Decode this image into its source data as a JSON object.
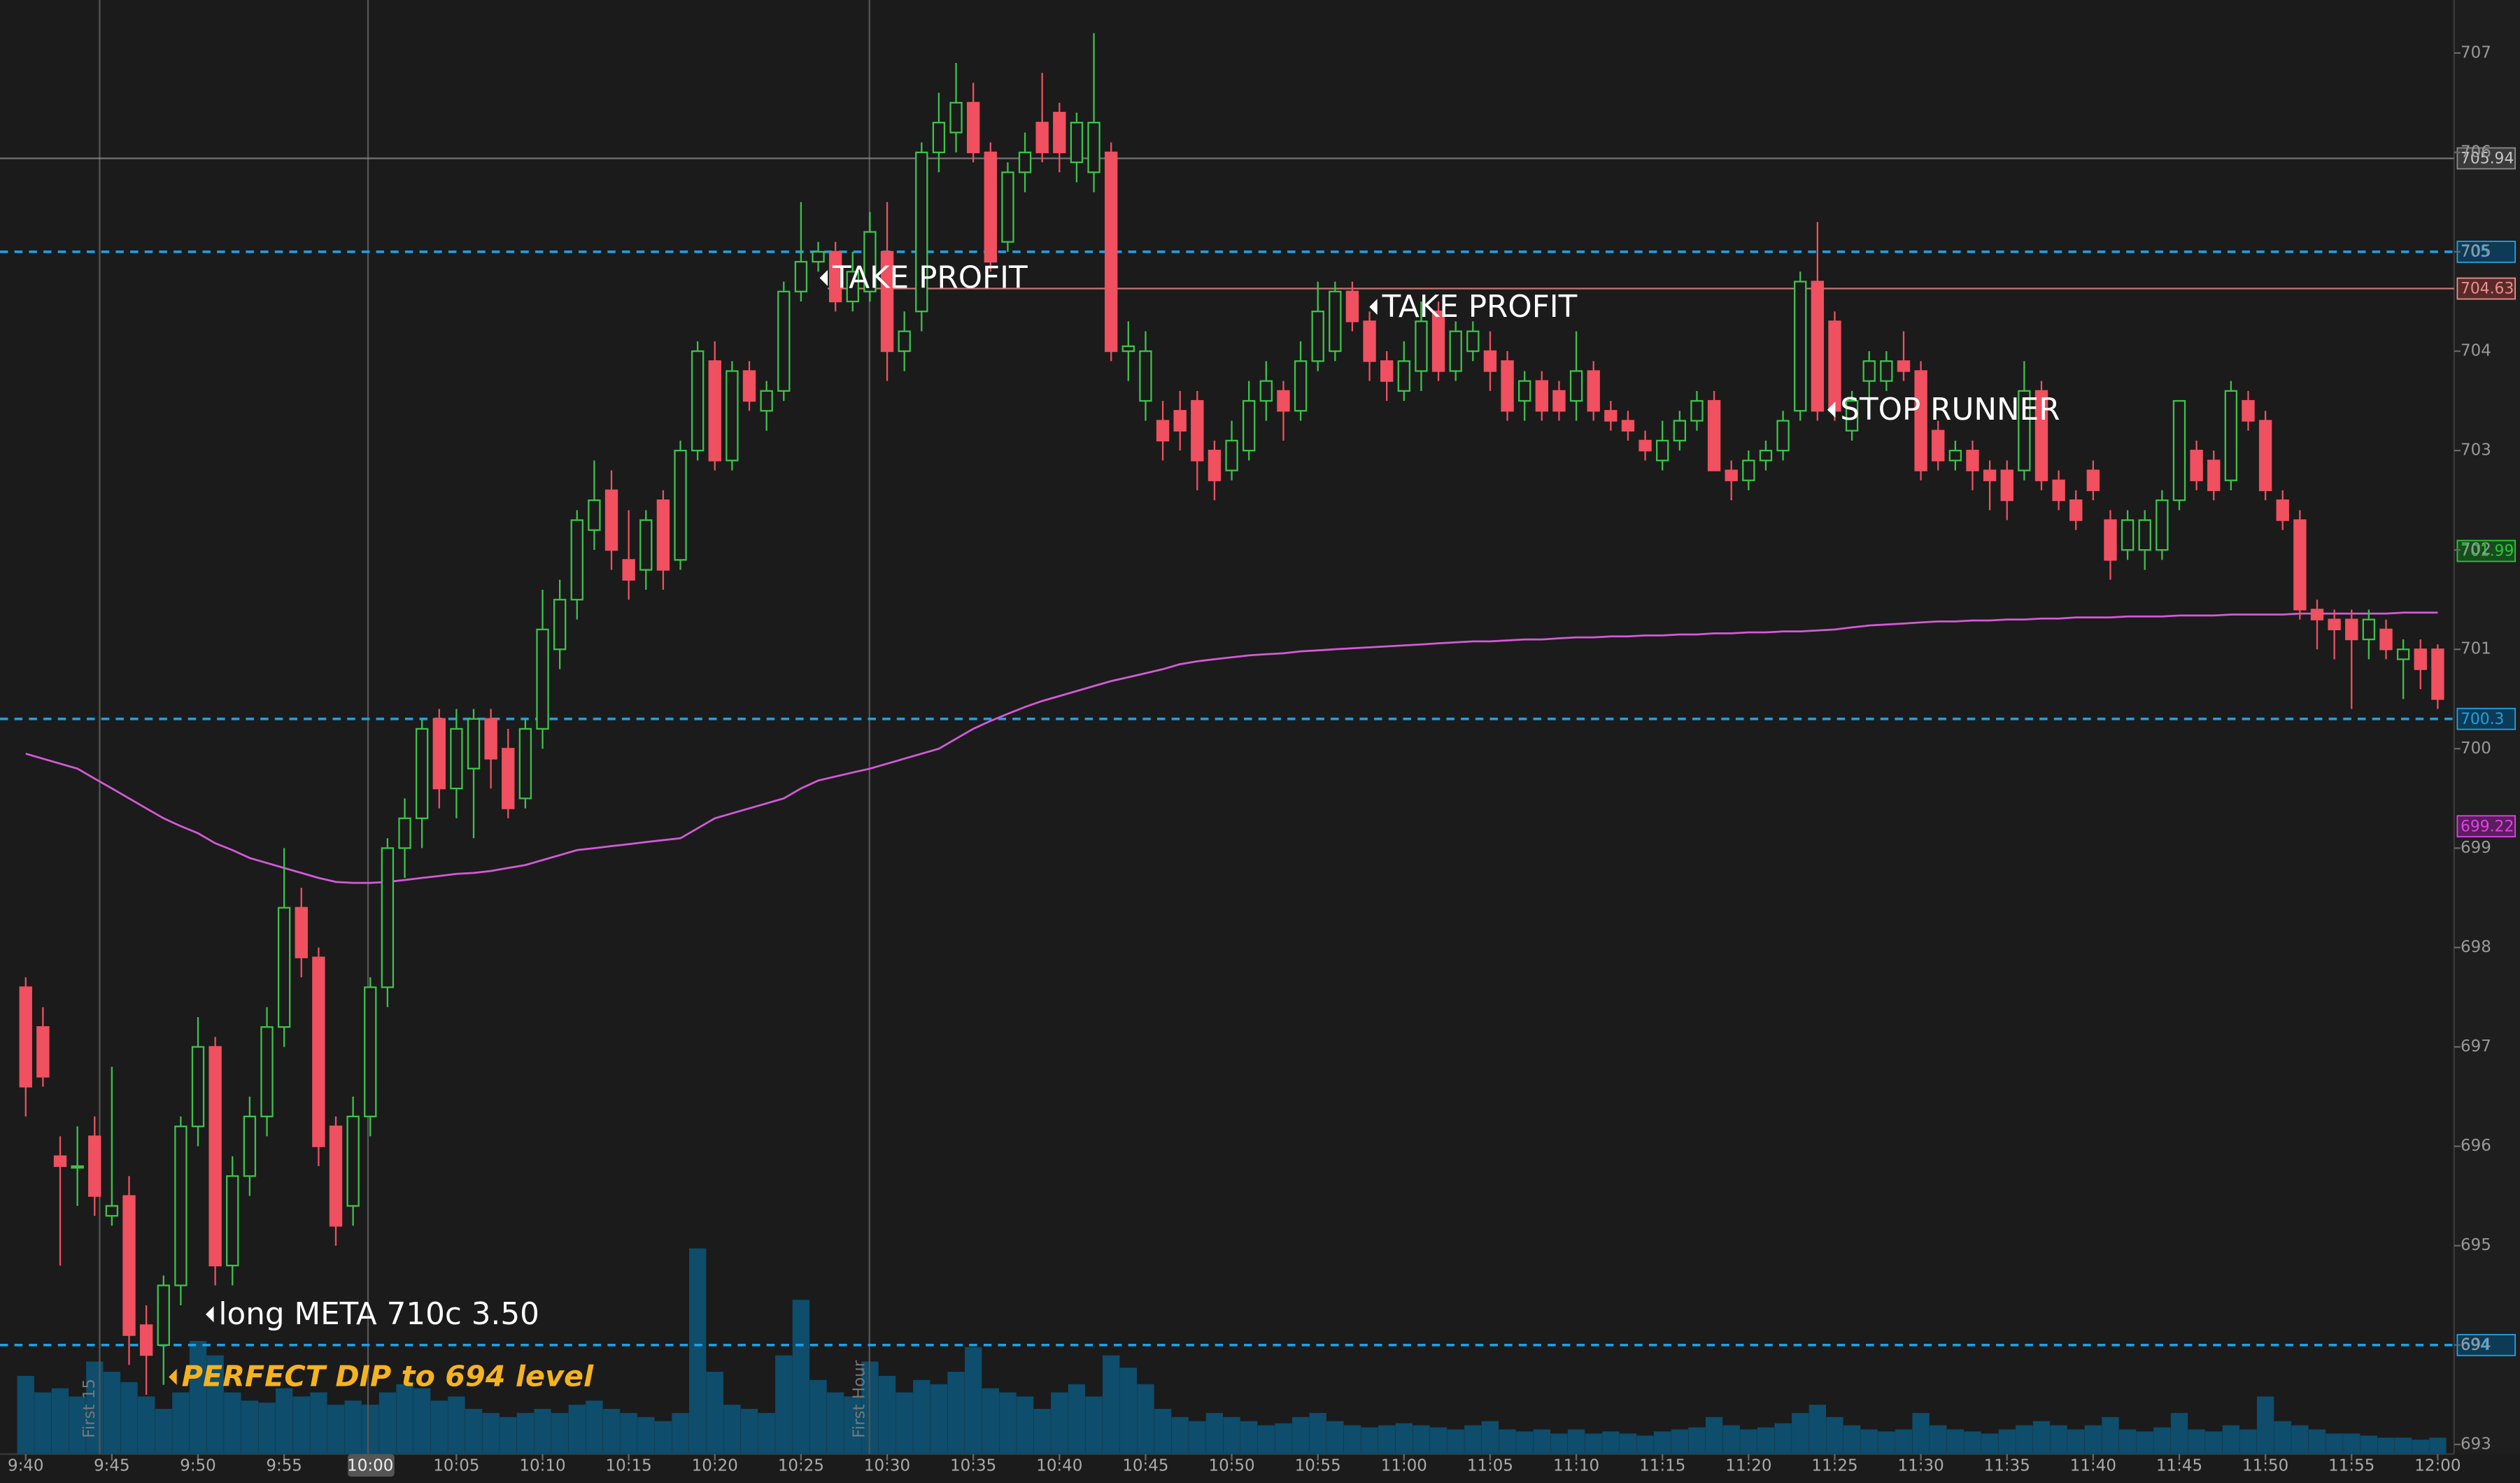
{
  "chart_data": {
    "type": "candlestick",
    "ylim": [
      692.9,
      707.55
    ],
    "yticks": [
      693,
      694,
      695,
      696,
      697,
      698,
      699,
      700,
      701,
      702,
      703,
      704,
      705,
      706,
      707
    ],
    "categories": [
      "9:40",
      null,
      null,
      null,
      null,
      "9:45",
      null,
      null,
      null,
      null,
      "9:50",
      null,
      null,
      null,
      null,
      "9:55",
      null,
      null,
      null,
      null,
      "10:00",
      null,
      null,
      null,
      null,
      "10:05",
      null,
      null,
      null,
      null,
      "10:10",
      null,
      null,
      null,
      null,
      "10:15",
      null,
      null,
      null,
      null,
      "10:20",
      null,
      null,
      null,
      null,
      "10:25",
      null,
      null,
      null,
      null,
      "10:30",
      null,
      null,
      null,
      null,
      "10:35",
      null,
      null,
      null,
      null,
      "10:40",
      null,
      null,
      null,
      null,
      "10:45",
      null,
      null,
      null,
      null,
      "10:50",
      null,
      null,
      null,
      null,
      "10:55",
      null,
      null,
      null,
      null,
      "11:00",
      null,
      null,
      null,
      null,
      "11:05",
      null,
      null,
      null,
      null,
      "11:10",
      null,
      null,
      null,
      null,
      "11:15",
      null,
      null,
      null,
      null,
      "11:20",
      null,
      null,
      null,
      null,
      "11:25",
      null,
      null,
      null,
      null,
      "11:30",
      null,
      null,
      null,
      null,
      "11:35",
      null,
      null,
      null,
      null,
      "11:40",
      null,
      null,
      null,
      null,
      "11:45",
      null,
      null,
      null,
      null,
      "11:50",
      null,
      null,
      null,
      null,
      "11:55",
      null,
      null,
      null,
      null,
      "12:00"
    ],
    "up_color": "#3cc24a",
    "down_color": "#f0505f",
    "vwap_color": "#d45ad8",
    "volume_color": "#0e4d6b",
    "candles": [
      [
        697.6,
        697.7,
        696.3,
        696.6
      ],
      [
        697.2,
        697.4,
        696.6,
        696.7
      ],
      [
        695.9,
        696.1,
        694.8,
        695.8
      ],
      [
        695.8,
        696.2,
        695.4,
        695.8
      ],
      [
        696.1,
        696.3,
        695.3,
        695.5
      ],
      [
        695.3,
        696.8,
        695.2,
        695.4
      ],
      [
        695.5,
        695.7,
        693.8,
        694.1
      ],
      [
        694.2,
        694.4,
        693.5,
        693.9
      ],
      [
        694.0,
        694.7,
        693.6,
        694.6
      ],
      [
        694.6,
        696.3,
        694.4,
        696.2
      ],
      [
        696.2,
        697.3,
        696.0,
        697.0
      ],
      [
        697.0,
        697.1,
        694.6,
        694.8
      ],
      [
        694.8,
        695.9,
        694.6,
        695.7
      ],
      [
        695.7,
        696.5,
        695.5,
        696.3
      ],
      [
        696.3,
        697.4,
        696.1,
        697.2
      ],
      [
        697.2,
        699.0,
        697.0,
        698.4
      ],
      [
        698.4,
        698.6,
        697.7,
        697.9
      ],
      [
        697.9,
        698.0,
        695.8,
        696.0
      ],
      [
        696.2,
        696.3,
        695.0,
        695.2
      ],
      [
        695.4,
        696.5,
        695.2,
        696.3
      ],
      [
        696.3,
        697.7,
        696.1,
        697.6
      ],
      [
        697.6,
        699.1,
        697.4,
        699.0
      ],
      [
        699.0,
        699.5,
        698.7,
        699.3
      ],
      [
        699.3,
        700.3,
        699.0,
        700.2
      ],
      [
        700.3,
        700.4,
        699.4,
        699.6
      ],
      [
        699.6,
        700.4,
        699.3,
        700.2
      ],
      [
        699.8,
        700.4,
        699.1,
        700.3
      ],
      [
        700.3,
        700.4,
        699.6,
        699.9
      ],
      [
        700.0,
        700.2,
        699.3,
        699.4
      ],
      [
        699.5,
        700.3,
        699.4,
        700.2
      ],
      [
        700.2,
        701.6,
        700.0,
        701.2
      ],
      [
        701.0,
        701.7,
        700.8,
        701.5
      ],
      [
        701.5,
        702.4,
        701.3,
        702.3
      ],
      [
        702.2,
        702.9,
        702.0,
        702.5
      ],
      [
        702.6,
        702.8,
        701.8,
        702.0
      ],
      [
        701.9,
        702.4,
        701.5,
        701.7
      ],
      [
        701.8,
        702.4,
        701.6,
        702.3
      ],
      [
        702.5,
        702.6,
        701.6,
        701.8
      ],
      [
        701.9,
        703.1,
        701.8,
        703.0
      ],
      [
        703.0,
        704.1,
        702.9,
        704.0
      ],
      [
        703.9,
        704.1,
        702.8,
        702.9
      ],
      [
        702.9,
        703.9,
        702.8,
        703.8
      ],
      [
        703.8,
        703.9,
        703.4,
        703.5
      ],
      [
        703.4,
        703.7,
        703.2,
        703.6
      ],
      [
        703.6,
        704.7,
        703.5,
        704.6
      ],
      [
        704.6,
        705.5,
        704.5,
        704.9
      ],
      [
        704.9,
        705.1,
        704.8,
        705.0
      ],
      [
        705.0,
        705.1,
        704.4,
        704.5
      ],
      [
        704.5,
        705.0,
        704.4,
        704.8
      ],
      [
        704.6,
        705.4,
        704.5,
        705.2
      ],
      [
        705.0,
        705.5,
        703.7,
        704.0
      ],
      [
        704.0,
        704.4,
        703.8,
        704.2
      ],
      [
        704.4,
        706.1,
        704.2,
        706.0
      ],
      [
        706.0,
        706.6,
        705.8,
        706.3
      ],
      [
        706.2,
        706.9,
        706.0,
        706.5
      ],
      [
        706.5,
        706.7,
        705.9,
        706.0
      ],
      [
        706.0,
        706.1,
        704.8,
        704.9
      ],
      [
        705.1,
        705.9,
        705.0,
        705.8
      ],
      [
        705.8,
        706.2,
        705.6,
        706.0
      ],
      [
        706.3,
        706.8,
        705.9,
        706.0
      ],
      [
        706.4,
        706.5,
        705.8,
        706.0
      ],
      [
        705.9,
        706.4,
        705.7,
        706.3
      ],
      [
        705.8,
        707.2,
        705.6,
        706.3
      ],
      [
        706.0,
        706.1,
        703.9,
        704.0
      ],
      [
        704.0,
        704.3,
        703.7,
        704.05
      ],
      [
        703.5,
        704.2,
        703.3,
        704.0
      ],
      [
        703.3,
        703.5,
        702.9,
        703.1
      ],
      [
        703.4,
        703.6,
        703.0,
        703.2
      ],
      [
        703.5,
        703.6,
        702.6,
        702.9
      ],
      [
        703.0,
        703.1,
        702.5,
        702.7
      ],
      [
        702.8,
        703.3,
        702.7,
        703.1
      ],
      [
        703.0,
        703.7,
        702.9,
        703.5
      ],
      [
        703.5,
        703.9,
        703.3,
        703.7
      ],
      [
        703.6,
        703.7,
        703.1,
        703.4
      ],
      [
        703.4,
        704.1,
        703.3,
        703.9
      ],
      [
        703.9,
        704.7,
        703.8,
        704.4
      ],
      [
        704.0,
        704.7,
        703.9,
        704.6
      ],
      [
        704.6,
        704.7,
        704.2,
        704.3
      ],
      [
        704.3,
        704.4,
        703.7,
        703.9
      ],
      [
        703.9,
        704.0,
        703.5,
        703.7
      ],
      [
        703.6,
        704.1,
        703.5,
        703.9
      ],
      [
        703.8,
        704.5,
        703.6,
        704.3
      ],
      [
        704.4,
        704.5,
        703.7,
        703.8
      ],
      [
        703.8,
        704.3,
        703.7,
        704.2
      ],
      [
        704.0,
        704.3,
        703.9,
        704.2
      ],
      [
        704.0,
        704.2,
        703.6,
        703.8
      ],
      [
        703.9,
        704.0,
        703.3,
        703.4
      ],
      [
        703.5,
        703.8,
        703.3,
        703.7
      ],
      [
        703.7,
        703.8,
        703.3,
        703.4
      ],
      [
        703.6,
        703.7,
        703.3,
        703.4
      ],
      [
        703.5,
        704.2,
        703.3,
        703.8
      ],
      [
        703.8,
        703.9,
        703.3,
        703.4
      ],
      [
        703.4,
        703.5,
        703.2,
        703.3
      ],
      [
        703.3,
        703.4,
        703.1,
        703.2
      ],
      [
        703.1,
        703.2,
        702.9,
        703.0
      ],
      [
        702.9,
        703.3,
        702.8,
        703.1
      ],
      [
        703.1,
        703.4,
        703.0,
        703.3
      ],
      [
        703.3,
        703.6,
        703.2,
        703.5
      ],
      [
        703.5,
        703.6,
        702.8,
        702.8
      ],
      [
        702.8,
        702.9,
        702.5,
        702.7
      ],
      [
        702.7,
        703.0,
        702.6,
        702.9
      ],
      [
        702.9,
        703.1,
        702.8,
        703.0
      ],
      [
        703.0,
        703.4,
        702.9,
        703.3
      ],
      [
        703.4,
        704.8,
        703.3,
        704.7
      ],
      [
        704.7,
        705.3,
        703.3,
        703.4
      ],
      [
        704.3,
        704.4,
        703.3,
        703.4
      ],
      [
        703.2,
        703.6,
        703.1,
        703.5
      ],
      [
        703.7,
        704.0,
        703.5,
        703.9
      ],
      [
        703.7,
        704.0,
        703.6,
        703.9
      ],
      [
        703.9,
        704.2,
        703.7,
        703.8
      ],
      [
        703.8,
        703.9,
        702.7,
        702.8
      ],
      [
        703.2,
        703.3,
        702.8,
        702.9
      ],
      [
        702.9,
        703.1,
        702.8,
        703.0
      ],
      [
        703.0,
        703.1,
        702.6,
        702.8
      ],
      [
        702.8,
        702.9,
        702.4,
        702.7
      ],
      [
        702.8,
        702.9,
        702.3,
        702.5
      ],
      [
        702.8,
        703.9,
        702.7,
        703.6
      ],
      [
        703.6,
        703.7,
        702.6,
        702.7
      ],
      [
        702.7,
        702.8,
        702.4,
        702.5
      ],
      [
        702.5,
        702.6,
        702.2,
        702.3
      ],
      [
        702.8,
        702.9,
        702.5,
        702.6
      ],
      [
        702.3,
        702.4,
        701.7,
        701.9
      ],
      [
        702.0,
        702.4,
        701.9,
        702.3
      ],
      [
        702.0,
        702.4,
        701.8,
        702.3
      ],
      [
        702.0,
        702.6,
        701.9,
        702.5
      ],
      [
        702.5,
        703.5,
        702.4,
        703.5
      ],
      [
        703.0,
        703.1,
        702.6,
        702.7
      ],
      [
        702.9,
        703.0,
        702.5,
        702.6
      ],
      [
        702.7,
        703.7,
        702.6,
        703.6
      ],
      [
        703.5,
        703.6,
        703.2,
        703.3
      ],
      [
        703.3,
        703.4,
        702.5,
        702.6
      ],
      [
        702.5,
        702.6,
        702.2,
        702.3
      ],
      [
        702.3,
        702.4,
        701.3,
        701.4
      ],
      [
        701.4,
        701.5,
        701.0,
        701.3
      ],
      [
        701.3,
        701.4,
        700.9,
        701.2
      ],
      [
        701.3,
        701.4,
        700.4,
        701.1
      ],
      [
        701.1,
        701.4,
        700.9,
        701.3
      ],
      [
        701.2,
        701.3,
        700.9,
        701.0
      ],
      [
        700.9,
        701.1,
        700.5,
        701.0
      ],
      [
        701.0,
        701.1,
        700.6,
        700.8
      ],
      [
        701.0,
        701.05,
        700.4,
        700.5
      ]
    ],
    "vwap": [
      699.95,
      699.9,
      699.85,
      699.8,
      699.7,
      699.6,
      699.5,
      699.4,
      699.3,
      699.22,
      699.15,
      699.05,
      698.98,
      698.9,
      698.85,
      698.8,
      698.75,
      698.7,
      698.66,
      698.65,
      698.65,
      698.66,
      698.68,
      698.7,
      698.72,
      698.74,
      698.75,
      698.77,
      698.8,
      698.83,
      698.88,
      698.93,
      698.98,
      699.0,
      699.02,
      699.04,
      699.06,
      699.08,
      699.1,
      699.2,
      699.3,
      699.35,
      699.4,
      699.45,
      699.5,
      699.6,
      699.68,
      699.72,
      699.76,
      699.8,
      699.85,
      699.9,
      699.95,
      700.0,
      700.1,
      700.2,
      700.28,
      700.35,
      700.42,
      700.48,
      700.53,
      700.58,
      700.63,
      700.68,
      700.72,
      700.76,
      700.8,
      700.85,
      700.88,
      700.9,
      700.92,
      700.94,
      700.95,
      700.96,
      700.98,
      700.99,
      701.0,
      701.01,
      701.02,
      701.03,
      701.04,
      701.05,
      701.06,
      701.07,
      701.08,
      701.08,
      701.09,
      701.1,
      701.1,
      701.11,
      701.12,
      701.12,
      701.13,
      701.13,
      701.14,
      701.14,
      701.15,
      701.15,
      701.16,
      701.16,
      701.17,
      701.17,
      701.18,
      701.18,
      701.19,
      701.2,
      701.22,
      701.24,
      701.25,
      701.26,
      701.27,
      701.28,
      701.28,
      701.29,
      701.29,
      701.3,
      701.3,
      701.31,
      701.31,
      701.32,
      701.32,
      701.32,
      701.33,
      701.33,
      701.33,
      701.34,
      701.34,
      701.34,
      701.35,
      701.35,
      701.35,
      701.35,
      701.36,
      701.36,
      701.36,
      701.36,
      701.36,
      701.36,
      701.37,
      701.37,
      701.37
    ],
    "volume": [
      38,
      30,
      32,
      28,
      45,
      40,
      35,
      28,
      22,
      30,
      55,
      48,
      30,
      26,
      25,
      32,
      28,
      30,
      24,
      26,
      24,
      30,
      34,
      32,
      26,
      28,
      22,
      20,
      18,
      20,
      22,
      20,
      24,
      26,
      22,
      20,
      18,
      16,
      20,
      100,
      40,
      24,
      22,
      20,
      48,
      75,
      36,
      30,
      28,
      45,
      38,
      30,
      36,
      34,
      40,
      52,
      32,
      30,
      28,
      22,
      30,
      34,
      28,
      48,
      42,
      34,
      22,
      18,
      16,
      20,
      18,
      16,
      14,
      15,
      18,
      20,
      16,
      14,
      13,
      14,
      15,
      14,
      13,
      12,
      14,
      16,
      12,
      11,
      12,
      10,
      12,
      10,
      11,
      10,
      9,
      11,
      12,
      13,
      18,
      14,
      12,
      13,
      15,
      20,
      24,
      18,
      14,
      12,
      11,
      12,
      20,
      14,
      12,
      11,
      10,
      12,
      14,
      16,
      14,
      12,
      14,
      18,
      12,
      11,
      13,
      20,
      12,
      11,
      14,
      12,
      28,
      16,
      14,
      12,
      10,
      10,
      9,
      8,
      8,
      7,
      8
    ],
    "levels": [
      {
        "value": 705.94,
        "color": "#8a8a8a",
        "line": "solid"
      },
      {
        "value": 705,
        "color": "#1ea0e6",
        "line": "dashed"
      },
      {
        "value": 704.63,
        "color": "#e8908c",
        "line": "solid"
      },
      {
        "value": 701.99,
        "color": "#2ec43a",
        "line": "none"
      },
      {
        "value": 700.3,
        "color": "#1ea0e6",
        "line": "dashed"
      },
      {
        "value": 699.22,
        "color": "#e040e8",
        "line": "none"
      },
      {
        "value": 694,
        "color": "#1ea0e6",
        "line": "dashed"
      }
    ],
    "markers": [
      "First 15",
      "First Hour"
    ],
    "annotations": [
      "TAKE PROFIT",
      "TAKE PROFIT",
      "STOP RUNNER",
      "long META 710c 3.50",
      "PERFECT DIP to 694 level"
    ]
  }
}
